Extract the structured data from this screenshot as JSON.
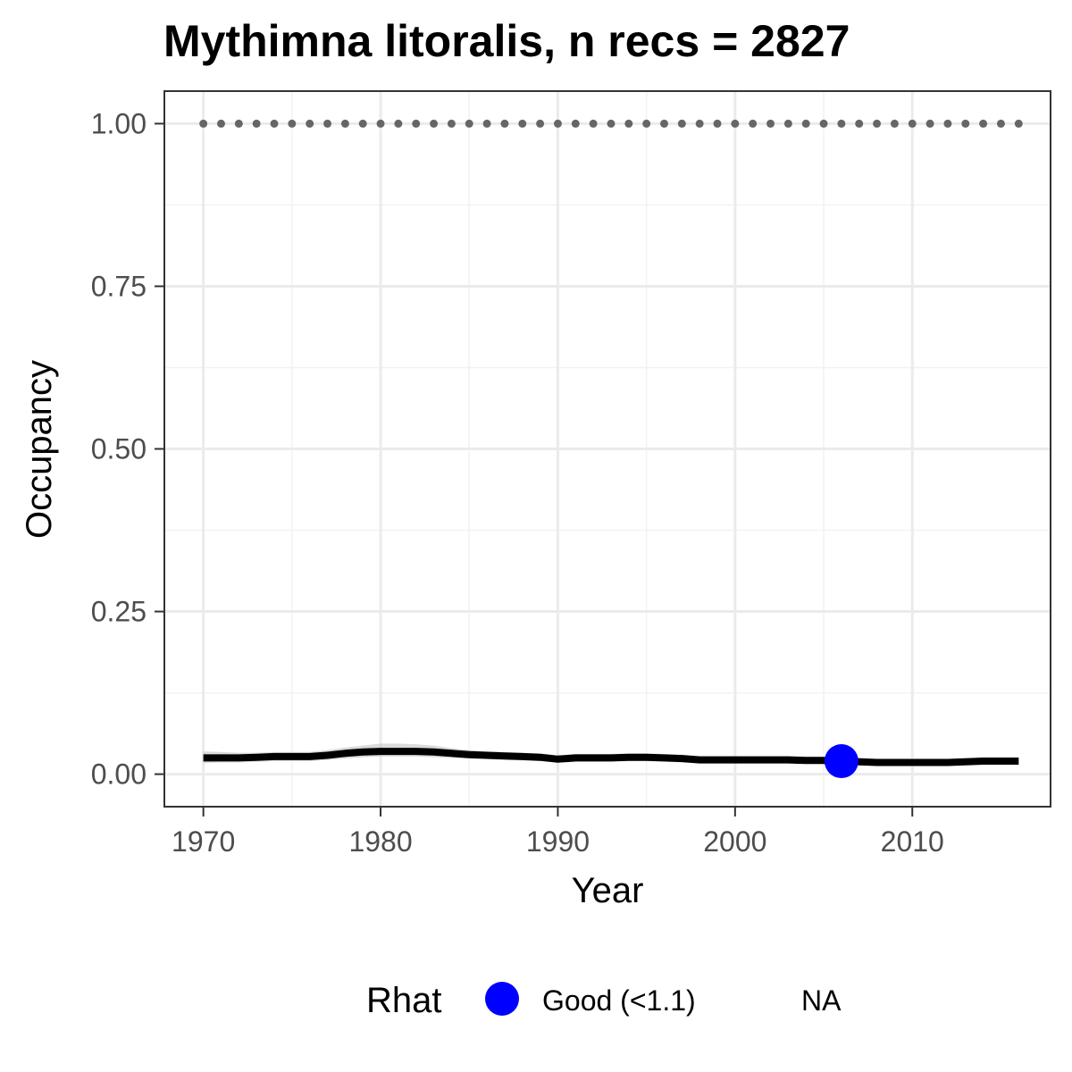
{
  "chart_data": {
    "type": "line",
    "title": "Mythimna litoralis, n recs = 2827",
    "xlabel": "Year",
    "ylabel": "Occupancy",
    "xlim": [
      1967.8,
      2017.8
    ],
    "ylim": [
      -0.05,
      1.05
    ],
    "x_ticks": [
      1970,
      1980,
      1990,
      2000,
      2010
    ],
    "x_tick_labels": [
      "1970",
      "1980",
      "1990",
      "2000",
      "2010"
    ],
    "y_ticks": [
      0,
      0.25,
      0.5,
      0.75,
      1.0
    ],
    "y_tick_labels": [
      "0.00",
      "0.25",
      "0.50",
      "0.75",
      "1.00"
    ],
    "grid": true,
    "series": [
      {
        "x": [
          1970,
          1971,
          1972,
          1973,
          1974,
          1975,
          1976,
          1977,
          1978,
          1979,
          1980,
          1981,
          1982,
          1983,
          1984,
          1985,
          1986,
          1987,
          1988,
          1989,
          1990,
          1991,
          1992,
          1993,
          1994,
          1995,
          1996,
          1997,
          1998,
          1999,
          2000,
          2001,
          2002,
          2003,
          2004,
          2005,
          2006,
          2007,
          2008,
          2009,
          2010,
          2011,
          2012,
          2013,
          2014,
          2015,
          2016
        ],
        "y": [
          0.025,
          0.025,
          0.025,
          0.026,
          0.027,
          0.027,
          0.027,
          0.029,
          0.032,
          0.034,
          0.035,
          0.035,
          0.035,
          0.034,
          0.032,
          0.03,
          0.029,
          0.028,
          0.027,
          0.026,
          0.023,
          0.025,
          0.025,
          0.025,
          0.026,
          0.026,
          0.025,
          0.024,
          0.022,
          0.022,
          0.022,
          0.022,
          0.022,
          0.022,
          0.021,
          0.021,
          0.02,
          0.019,
          0.018,
          0.018,
          0.018,
          0.018,
          0.018,
          0.019,
          0.02,
          0.02,
          0.02
        ],
        "y_lower": [
          0.017,
          0.018,
          0.018,
          0.019,
          0.02,
          0.02,
          0.02,
          0.022,
          0.024,
          0.026,
          0.027,
          0.027,
          0.027,
          0.026,
          0.025,
          0.024,
          0.023,
          0.022,
          0.021,
          0.02,
          0.018,
          0.019,
          0.019,
          0.019,
          0.02,
          0.02,
          0.019,
          0.018,
          0.017,
          0.017,
          0.017,
          0.017,
          0.017,
          0.017,
          0.016,
          0.016,
          0.015,
          0.014,
          0.014,
          0.014,
          0.014,
          0.014,
          0.014,
          0.015,
          0.015,
          0.015,
          0.015
        ],
        "y_upper": [
          0.035,
          0.034,
          0.033,
          0.033,
          0.034,
          0.034,
          0.034,
          0.037,
          0.041,
          0.044,
          0.047,
          0.047,
          0.046,
          0.044,
          0.04,
          0.037,
          0.035,
          0.034,
          0.033,
          0.032,
          0.029,
          0.031,
          0.031,
          0.031,
          0.032,
          0.032,
          0.031,
          0.03,
          0.028,
          0.028,
          0.028,
          0.028,
          0.028,
          0.028,
          0.027,
          0.027,
          0.026,
          0.025,
          0.023,
          0.023,
          0.023,
          0.023,
          0.023,
          0.024,
          0.026,
          0.026,
          0.026
        ],
        "color": "#000000",
        "ribbon_color": "#bebebe"
      },
      {
        "x": [
          1970,
          1971,
          1972,
          1973,
          1974,
          1975,
          1976,
          1977,
          1978,
          1979,
          1980,
          1981,
          1982,
          1983,
          1984,
          1985,
          1986,
          1987,
          1988,
          1989,
          1990,
          1991,
          1992,
          1993,
          1994,
          1995,
          1996,
          1997,
          1998,
          1999,
          2000,
          2001,
          2002,
          2003,
          2004,
          2005,
          2006,
          2007,
          2008,
          2009,
          2010,
          2011,
          2012,
          2013,
          2014,
          2015,
          2016
        ],
        "y": [
          1,
          1,
          1,
          1,
          1,
          1,
          1,
          1,
          1,
          1,
          1,
          1,
          1,
          1,
          1,
          1,
          1,
          1,
          1,
          1,
          1,
          1,
          1,
          1,
          1,
          1,
          1,
          1,
          1,
          1,
          1,
          1,
          1,
          1,
          1,
          1,
          1,
          1,
          1,
          1,
          1,
          1,
          1,
          1,
          1,
          1,
          1
        ],
        "style": "dotted",
        "color": "#666666"
      }
    ],
    "points": [
      {
        "x": 2006,
        "y": 0.02,
        "rhat": "Good (<1.1)",
        "color": "#0000ff"
      }
    ],
    "legend": {
      "title": "Rhat",
      "position": "bottom",
      "entries": [
        {
          "label": "Good (<1.1)",
          "color": "#0000ff",
          "marker": "circle"
        },
        {
          "label": "NA",
          "marker": "none"
        }
      ]
    }
  }
}
